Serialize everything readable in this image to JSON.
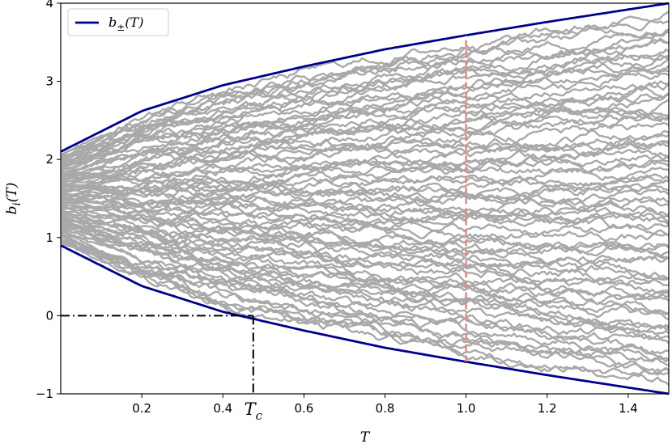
{
  "chart_data": {
    "type": "line",
    "title": "",
    "xlabel": "T",
    "ylabel": "b_i(T)",
    "xlim": [
      0.0,
      1.5
    ],
    "ylim": [
      -1,
      4
    ],
    "x_ticks": [
      0.2,
      0.4,
      0.6,
      0.8,
      1.0,
      1.2,
      1.4
    ],
    "x_tick_labels": [
      "0.2",
      "0.4",
      "0.6",
      "0.8",
      "1.0",
      "1.2",
      "1.4"
    ],
    "y_ticks": [
      -1,
      0,
      1,
      2,
      3,
      4
    ],
    "y_tick_labels": [
      "−1",
      "0",
      "1",
      "2",
      "3",
      "4"
    ],
    "grid": false,
    "legend": {
      "placement": "top-left",
      "entries": [
        {
          "label": "b±(T)",
          "base": "b",
          "sub": "±",
          "suffix": "(T)",
          "color": "#00008b"
        }
      ]
    },
    "envelope": {
      "name": "b±(T)",
      "color": "#00008b",
      "center": 1.5,
      "points": [
        {
          "x": 0.0,
          "upper": 2.1,
          "lower": 0.9
        },
        {
          "x": 0.2,
          "upper": 2.62,
          "lower": 0.38
        },
        {
          "x": 0.4,
          "upper": 2.95,
          "lower": 0.05
        },
        {
          "x": 0.6,
          "upper": 3.19,
          "lower": -0.19
        },
        {
          "x": 0.8,
          "upper": 3.41,
          "lower": -0.41
        },
        {
          "x": 1.0,
          "upper": 3.59,
          "lower": -0.59
        },
        {
          "x": 1.2,
          "upper": 3.76,
          "lower": -0.76
        },
        {
          "x": 1.4,
          "upper": 3.92,
          "lower": -0.92
        },
        {
          "x": 1.5,
          "upper": 4.0,
          "lower": -1.0
        }
      ]
    },
    "trajectories": {
      "color": "#a9a9a9",
      "count": 80,
      "x_start": 0.0,
      "x_end": 1.5,
      "start_band": [
        1.1,
        1.9
      ]
    },
    "annotations": {
      "vertical_line": {
        "x": 1.0,
        "y_from": -0.59,
        "y_to": 3.59,
        "color": "#f08080",
        "style": "dashed"
      },
      "tc": {
        "label": "T",
        "sub": "c",
        "x": 0.475,
        "y": 0.0,
        "color": "#000000",
        "style": "dash-dot"
      }
    }
  }
}
